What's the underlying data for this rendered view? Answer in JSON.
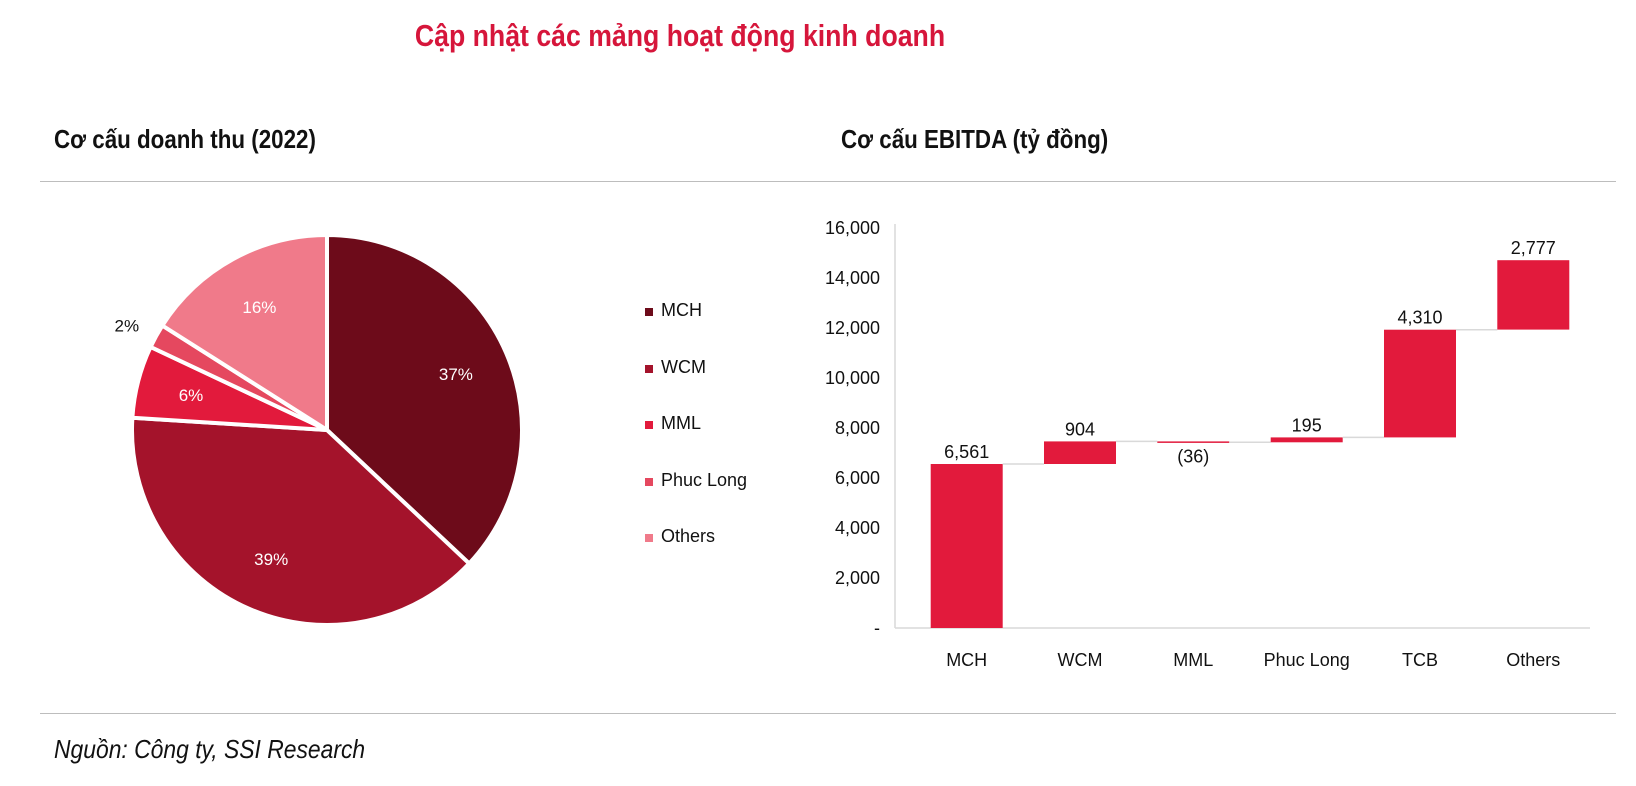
{
  "title": "Cập nhật các mảng hoạt động kinh doanh",
  "source": "Nguồn: Công ty, SSI Research",
  "chart_data": [
    {
      "type": "pie",
      "title": "Cơ cấu doanh thu (2022)",
      "slices": [
        {
          "label": "MCH",
          "value": 37,
          "display": "37%",
          "color": "#6d0b1a"
        },
        {
          "label": "WCM",
          "value": 39,
          "display": "39%",
          "color": "#a4132b"
        },
        {
          "label": "MML",
          "value": 6,
          "display": "6%",
          "color": "#e21a3c"
        },
        {
          "label": "Phuc Long",
          "value": 2,
          "display": "2%",
          "color": "#e5485f"
        },
        {
          "label": "Others",
          "value": 16,
          "display": "16%",
          "color": "#f07a8a"
        }
      ],
      "legend_position": "right"
    },
    {
      "type": "waterfall",
      "title": "Cơ cấu EBITDA (tỷ đồng)",
      "categories": [
        "MCH",
        "WCM",
        "MML",
        "Phuc Long",
        "TCB",
        "Others"
      ],
      "values": [
        6561,
        904,
        -36,
        195,
        4310,
        2777
      ],
      "data_labels": [
        "6,561",
        "904",
        "(36)",
        "195",
        "4,310",
        "2,777"
      ],
      "ylim": [
        0,
        16000
      ],
      "yticks": [
        0,
        2000,
        4000,
        6000,
        8000,
        10000,
        12000,
        14000,
        16000
      ],
      "ytick_labels": [
        "-",
        "2,000",
        "4,000",
        "6,000",
        "8,000",
        "10,000",
        "12,000",
        "14,000",
        "16,000"
      ],
      "bar_color": "#e21a3c",
      "grid": false
    }
  ]
}
